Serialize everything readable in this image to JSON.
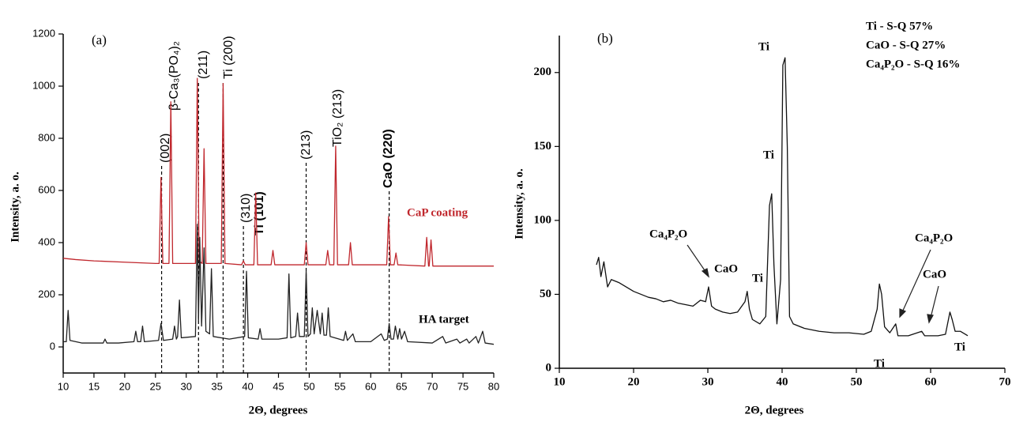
{
  "chart_data": [
    {
      "type": "line",
      "xlabel": "2Θ, degrees",
      "ylabel": "Intensity, a. o.",
      "xlim": [
        10,
        80
      ],
      "xticks": [
        10,
        15,
        20,
        25,
        30,
        35,
        40,
        45,
        50,
        55,
        60,
        65,
        70,
        75,
        80
      ],
      "ylim": [
        -100,
        1200
      ],
      "yticks": [
        0,
        200,
        400,
        600,
        800,
        1000,
        1200
      ],
      "reference_lines": [
        26,
        32,
        36,
        39.3,
        49.5,
        63
      ],
      "annotations": [
        "(a)",
        "(002)",
        "β-Ca₃(PO₄)₂",
        "(211)",
        "Ti (200)",
        "(310)",
        "Ti (101)",
        "(213)",
        "TiO₂ (213)",
        "CaO (220)"
      ],
      "series": [
        {
          "name": "CaP coating",
          "color": "#c0272d",
          "x": [
            10,
            12,
            15,
            20,
            25,
            25.6,
            25.9,
            26.2,
            27.2,
            27.5,
            27.8,
            31.5,
            31.8,
            32.1,
            32.6,
            32.9,
            33.2,
            35.7,
            36,
            36.3,
            39,
            39.3,
            39.6,
            41,
            41.3,
            41.6,
            43.8,
            44.1,
            44.4,
            49.2,
            49.5,
            49.8,
            52.7,
            53,
            53.3,
            54,
            54.3,
            54.6,
            56.4,
            56.7,
            57,
            62.6,
            62.9,
            63.2,
            63.8,
            64.1,
            64.4,
            68.8,
            69.1,
            69.4,
            69.5,
            69.8,
            70.1,
            75,
            80
          ],
          "values": [
            340,
            335,
            330,
            325,
            320,
            320,
            650,
            320,
            320,
            940,
            320,
            320,
            1030,
            330,
            320,
            760,
            320,
            320,
            1010,
            320,
            315,
            330,
            315,
            315,
            590,
            315,
            315,
            370,
            315,
            315,
            400,
            315,
            315,
            370,
            315,
            315,
            770,
            315,
            315,
            400,
            315,
            315,
            500,
            315,
            315,
            360,
            315,
            310,
            420,
            310,
            310,
            410,
            310,
            310,
            310
          ]
        },
        {
          "name": "HA target",
          "color": "#222222",
          "x": [
            10,
            10.5,
            10.8,
            11.1,
            13,
            15,
            16.5,
            16.8,
            17.1,
            19,
            21.5,
            21.8,
            22.1,
            22.6,
            22.9,
            23.2,
            25.5,
            25.9,
            26.3,
            27.8,
            28.1,
            28.4,
            28.6,
            28.9,
            29.2,
            31.5,
            31.8,
            32.0,
            32.2,
            32.5,
            32.9,
            33.2,
            33.8,
            34.1,
            34.4,
            37,
            39.5,
            39.8,
            40.1,
            41.7,
            42,
            42.3,
            45,
            46.4,
            46.7,
            47,
            47.8,
            48.1,
            48.4,
            49.2,
            49.5,
            49.8,
            50.2,
            50.5,
            50.8,
            51.3,
            51.8,
            52.1,
            52.4,
            52.8,
            53.1,
            53.4,
            55.6,
            55.9,
            56.2,
            57.1,
            57.5,
            60,
            61.7,
            62.2,
            62.7,
            63,
            63.3,
            63.7,
            64,
            64.4,
            64.7,
            65,
            65.5,
            66,
            70,
            71.7,
            72.2,
            74,
            74.5,
            75.6,
            76,
            77.1,
            77.5,
            78.2,
            78.6,
            80
          ],
          "values": [
            20,
            20,
            140,
            25,
            15,
            15,
            15,
            30,
            15,
            15,
            20,
            60,
            20,
            20,
            80,
            20,
            25,
            90,
            25,
            30,
            80,
            30,
            40,
            180,
            35,
            40,
            470,
            100,
            420,
            80,
            380,
            60,
            50,
            300,
            40,
            30,
            40,
            290,
            35,
            30,
            70,
            30,
            30,
            35,
            280,
            35,
            40,
            130,
            40,
            40,
            290,
            40,
            50,
            150,
            50,
            140,
            50,
            130,
            45,
            45,
            150,
            40,
            25,
            60,
            25,
            50,
            20,
            20,
            50,
            25,
            30,
            90,
            30,
            30,
            80,
            30,
            70,
            30,
            60,
            20,
            15,
            40,
            15,
            30,
            15,
            30,
            15,
            40,
            15,
            60,
            15,
            10
          ]
        }
      ]
    },
    {
      "type": "line",
      "xlabel": "2Θ, degrees",
      "ylabel": "Intensity, a. o.",
      "xlim": [
        10,
        70
      ],
      "xticks": [
        10,
        20,
        30,
        40,
        50,
        60,
        70
      ],
      "ylim": [
        0,
        225
      ],
      "yticks": [
        0,
        50,
        100,
        150,
        200
      ],
      "annotations": [
        "(b)",
        "Ti - S-Q 57%",
        "CaO - S-Q 27%",
        "Ca₄P₂O - S-Q 16%",
        "Ti",
        "Ti",
        "Ti",
        "CaO",
        "Ca₄P₂O",
        "Ti",
        "Ca₄P₂O",
        "CaO",
        "Ti"
      ],
      "series": [
        {
          "color": "#111111",
          "x": [
            15,
            15.3,
            15.6,
            16,
            16.5,
            17,
            18,
            19,
            20,
            21,
            22,
            23,
            24,
            25,
            26,
            27,
            28,
            29,
            29.7,
            30.1,
            30.5,
            31,
            32,
            33,
            34,
            35,
            35.3,
            35.6,
            36,
            37,
            37.8,
            38.3,
            38.6,
            38.9,
            39.3,
            39.8,
            40.1,
            40.4,
            40.7,
            41,
            41.5,
            43,
            45,
            47,
            49,
            51,
            52,
            52.8,
            53.1,
            53.4,
            53.8,
            54.5,
            55.3,
            55.6,
            57,
            58.8,
            59.2,
            61,
            62,
            62.6,
            62.9,
            63.3,
            64,
            65
          ],
          "values": [
            70,
            75,
            62,
            72,
            55,
            60,
            58,
            55,
            52,
            50,
            48,
            47,
            45,
            46,
            44,
            43,
            42,
            46,
            45,
            55,
            42,
            40,
            38,
            37,
            38,
            45,
            52,
            40,
            33,
            30,
            35,
            110,
            118,
            70,
            30,
            60,
            205,
            210,
            150,
            35,
            30,
            27,
            25,
            24,
            24,
            23,
            25,
            40,
            57,
            50,
            28,
            24,
            30,
            22,
            22,
            25,
            22,
            22,
            23,
            38,
            33,
            25,
            25,
            22
          ]
        }
      ]
    }
  ]
}
